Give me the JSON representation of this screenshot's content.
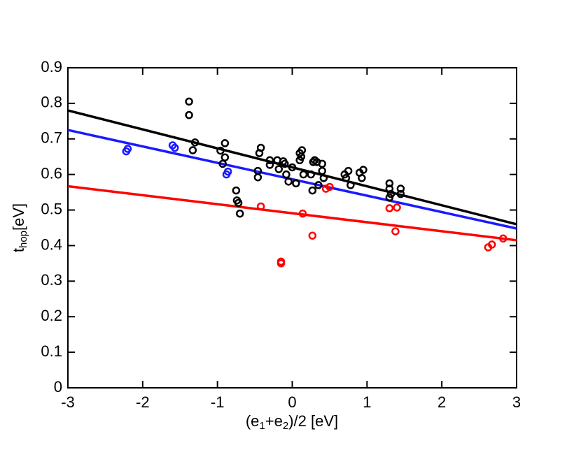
{
  "chart_data": {
    "type": "scatter",
    "x_label": [
      "(e",
      "1",
      "+e",
      "2",
      ")/2 [eV]"
    ],
    "y_label": [
      "t",
      "hop",
      "[eV]"
    ],
    "xlim": [
      -3,
      3
    ],
    "xticks": [
      -3,
      -2,
      -1,
      0,
      1,
      2,
      3
    ],
    "ylim": [
      0,
      0.9
    ],
    "yticks": [
      0,
      0.1,
      0.2,
      0.3,
      0.4,
      0.5,
      0.6,
      0.7,
      0.8,
      0.9
    ],
    "series": [
      {
        "color": "#000000",
        "x": [
          -1.38,
          -1.38,
          -1.33,
          -1.3,
          -0.9,
          -0.9,
          -0.93,
          -0.96,
          -0.75,
          -0.74,
          -0.72,
          -0.7,
          -0.42,
          -0.44,
          -0.46,
          -0.46,
          -0.3,
          -0.3,
          -0.2,
          -0.18,
          -0.12,
          -0.1,
          -0.08,
          -0.05,
          0.0,
          0.05,
          0.1,
          0.1,
          0.13,
          0.12,
          0.15,
          0.25,
          0.27,
          0.28,
          0.3,
          0.33,
          0.35,
          0.4,
          0.4,
          0.42,
          0.7,
          0.72,
          0.75,
          0.78,
          0.9,
          0.93,
          0.95,
          1.3,
          1.3,
          1.32,
          1.3,
          1.45,
          1.45
        ],
        "values": [
          0.805,
          0.767,
          0.668,
          0.69,
          0.688,
          0.648,
          0.63,
          0.667,
          0.555,
          0.527,
          0.52,
          0.49,
          0.675,
          0.66,
          0.61,
          0.592,
          0.64,
          0.627,
          0.64,
          0.615,
          0.637,
          0.63,
          0.6,
          0.58,
          0.62,
          0.575,
          0.64,
          0.66,
          0.668,
          0.65,
          0.6,
          0.6,
          0.555,
          0.635,
          0.64,
          0.635,
          0.57,
          0.63,
          0.61,
          0.59,
          0.6,
          0.59,
          0.61,
          0.57,
          0.605,
          0.59,
          0.613,
          0.575,
          0.56,
          0.545,
          0.535,
          0.56,
          0.545
        ]
      },
      {
        "color": "#1a1aff",
        "x": [
          -2.22,
          -2.2,
          -1.6,
          -1.57,
          -0.88,
          -0.86
        ],
        "values": [
          0.665,
          0.672,
          0.682,
          0.675,
          0.6,
          0.608
        ]
      },
      {
        "color": "#ff0000",
        "x": [
          -0.42,
          -0.15,
          -0.15,
          0.14,
          0.27,
          0.45,
          0.5,
          1.3,
          1.4,
          1.38,
          2.62,
          2.67,
          2.82
        ],
        "values": [
          0.51,
          0.35,
          0.355,
          0.49,
          0.428,
          0.56,
          0.565,
          0.505,
          0.507,
          0.44,
          0.395,
          0.403,
          0.42
        ]
      }
    ],
    "fits": [
      {
        "color": "#000000",
        "x": [
          -3,
          3
        ],
        "values": [
          0.78,
          0.46
        ]
      },
      {
        "color": "#1a1aff",
        "x": [
          -3,
          3
        ],
        "values": [
          0.725,
          0.448
        ]
      },
      {
        "color": "#ff0000",
        "x": [
          -3,
          3
        ],
        "values": [
          0.567,
          0.415
        ]
      }
    ]
  }
}
